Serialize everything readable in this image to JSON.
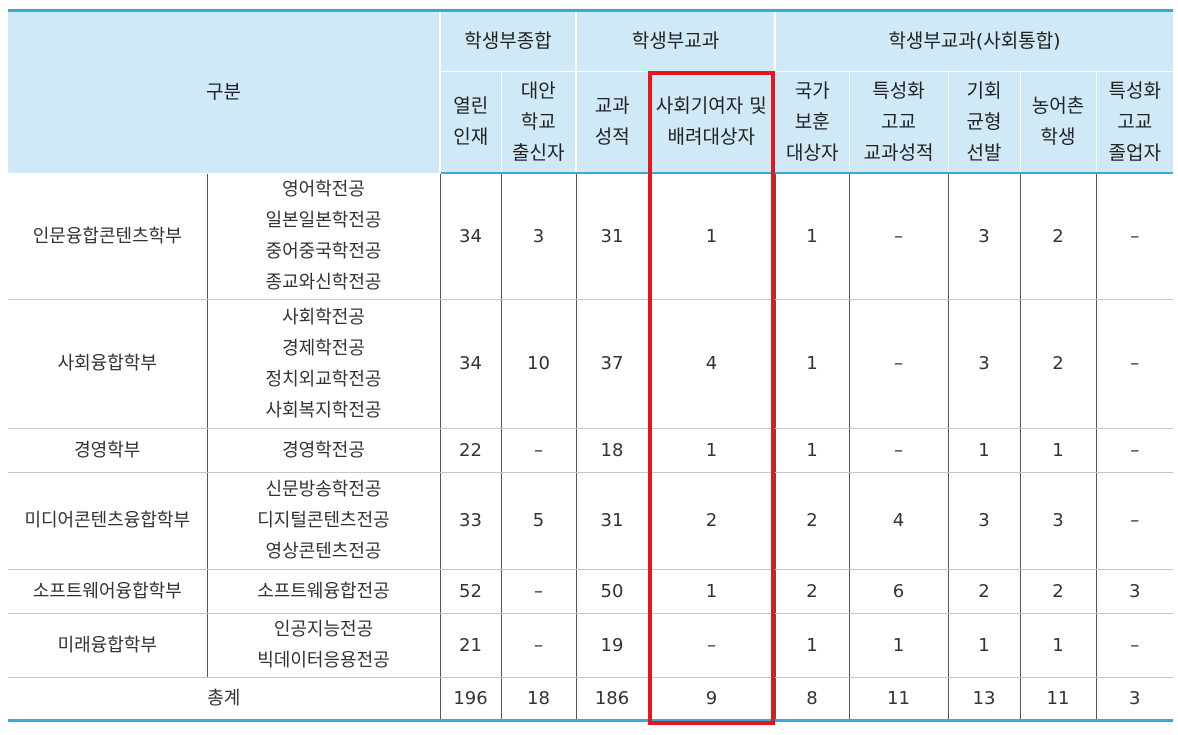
{
  "header": {
    "category": "구분",
    "groups": [
      "학생부종합",
      "학생부교과",
      "학생부교과(사회통합)"
    ],
    "sub": [
      [
        "열린",
        "인재"
      ],
      [
        "대안",
        "학교",
        "출신자"
      ],
      [
        "교과",
        "성적"
      ],
      [
        "사회기여자 및",
        "배려대상자"
      ],
      [
        "국가",
        "보훈",
        "대상자"
      ],
      [
        "특성화",
        "고교",
        "교과성적"
      ],
      [
        "기회",
        "균형",
        "선발"
      ],
      [
        "농어촌",
        "학생"
      ],
      [
        "특성화",
        "고교",
        "졸업자"
      ]
    ]
  },
  "rows": [
    {
      "faculty": "인문융합콘텐츠학부",
      "majors": [
        "영어학전공",
        "일본일본학전공",
        "중어중국학전공",
        "종교와신학전공"
      ],
      "values": [
        "34",
        "3",
        "31",
        "1",
        "1",
        "–",
        "3",
        "2",
        "–"
      ]
    },
    {
      "faculty": "사회융합학부",
      "majors": [
        "사회학전공",
        "경제학전공",
        "정치외교학전공",
        "사회복지학전공"
      ],
      "values": [
        "34",
        "10",
        "37",
        "4",
        "1",
        "–",
        "3",
        "2",
        "–"
      ]
    },
    {
      "faculty": "경영학부",
      "majors": [
        "경영학전공"
      ],
      "values": [
        "22",
        "–",
        "18",
        "1",
        "1",
        "–",
        "1",
        "1",
        "–"
      ]
    },
    {
      "faculty": "미디어콘텐츠융합학부",
      "majors": [
        "신문방송학전공",
        "디지털콘텐츠전공",
        "영상콘텐츠전공"
      ],
      "values": [
        "33",
        "5",
        "31",
        "2",
        "2",
        "4",
        "3",
        "3",
        "–"
      ]
    },
    {
      "faculty": "소프트웨어융합학부",
      "majors": [
        "소프트웨융합전공"
      ],
      "values": [
        "52",
        "–",
        "50",
        "1",
        "2",
        "6",
        "2",
        "2",
        "3"
      ]
    },
    {
      "faculty": "미래융합학부",
      "majors": [
        "인공지능전공",
        "빅데이터응용전공"
      ],
      "values": [
        "21",
        "–",
        "19",
        "–",
        "1",
        "1",
        "1",
        "1",
        "–"
      ]
    }
  ],
  "total": {
    "label": "총계",
    "values": [
      "196",
      "18",
      "186",
      "9",
      "8",
      "11",
      "13",
      "11",
      "3"
    ]
  },
  "colors": {
    "header_bg": "#cfe9f6",
    "accent_line": "#3aa9d9",
    "highlight_border": "#e5161e"
  }
}
